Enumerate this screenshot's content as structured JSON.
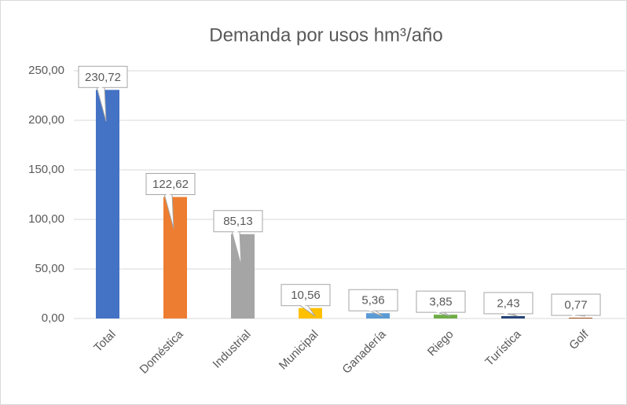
{
  "chart_data": {
    "type": "bar",
    "title": "Demanda por usos hm³/año",
    "categories": [
      "Total",
      "Doméstica",
      "Industrial",
      "Municipal",
      "Ganadería",
      "Riego",
      "Turística",
      "Golf"
    ],
    "values": [
      230.72,
      122.62,
      85.13,
      10.56,
      5.36,
      3.85,
      2.43,
      0.77
    ],
    "value_labels": [
      "230,72",
      "122,62",
      "85,13",
      "10,56",
      "5,36",
      "3,85",
      "2,43",
      "0,77"
    ],
    "colors": [
      "#4472c4",
      "#ed7d31",
      "#a5a5a5",
      "#ffc000",
      "#5b9bd5",
      "#70ad47",
      "#264478",
      "#9e480e"
    ],
    "ylim": [
      0,
      250
    ],
    "yticks": [
      {
        "value": 0,
        "label": "0,00"
      },
      {
        "value": 50,
        "label": "50,00"
      },
      {
        "value": 100,
        "label": "100,00"
      },
      {
        "value": 150,
        "label": "150,00"
      },
      {
        "value": 200,
        "label": "200,00"
      },
      {
        "value": 250,
        "label": "250,00"
      }
    ],
    "grid": true
  }
}
